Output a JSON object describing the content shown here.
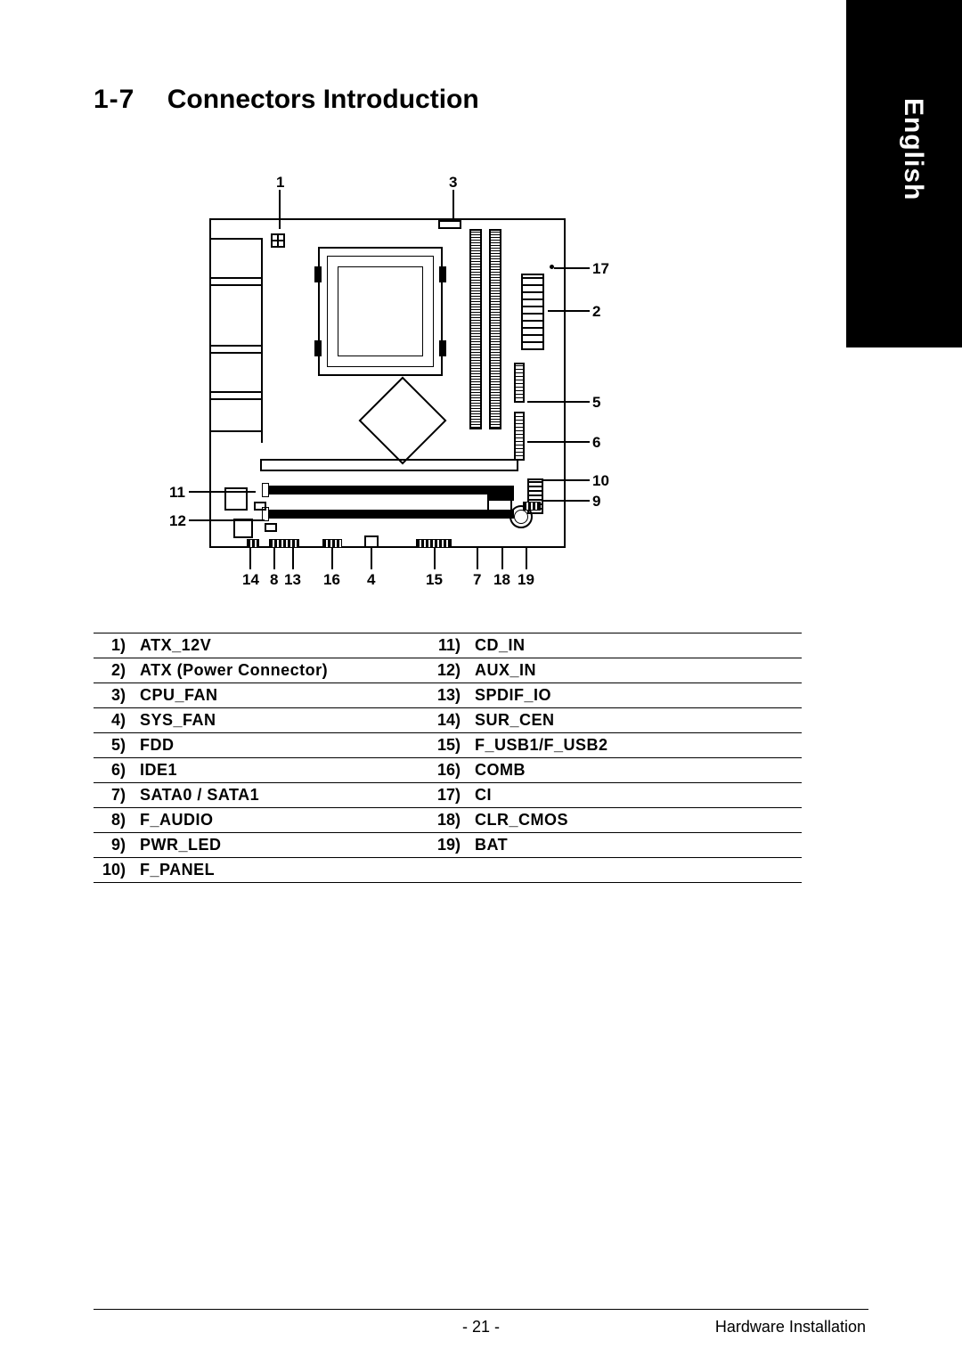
{
  "sideTab": "English",
  "heading": {
    "num": "1-7",
    "title": "Connectors Introduction"
  },
  "callouts": {
    "c1": "1",
    "c3": "3",
    "c17": "17",
    "c2": "2",
    "c5": "5",
    "c6": "6",
    "c10": "10",
    "c9": "9",
    "c11": "11",
    "c12": "12",
    "c14": "14",
    "c8": "8",
    "c13": "13",
    "c16": "16",
    "c4": "4",
    "c15": "15",
    "c7": "7",
    "c18": "18",
    "c19": "19"
  },
  "connectors": {
    "left": [
      {
        "n": "1)",
        "name": "ATX_12V"
      },
      {
        "n": "2)",
        "name": "ATX (Power Connector)"
      },
      {
        "n": "3)",
        "name": "CPU_FAN"
      },
      {
        "n": "4)",
        "name": "SYS_FAN"
      },
      {
        "n": "5)",
        "name": "FDD"
      },
      {
        "n": "6)",
        "name": "IDE1"
      },
      {
        "n": "7)",
        "name": "SATA0 / SATA1"
      },
      {
        "n": "8)",
        "name": "F_AUDIO"
      },
      {
        "n": "9)",
        "name": "PWR_LED"
      },
      {
        "n": "10)",
        "name": "F_PANEL"
      }
    ],
    "right": [
      {
        "n": "11)",
        "name": "CD_IN"
      },
      {
        "n": "12)",
        "name": "AUX_IN"
      },
      {
        "n": "13)",
        "name": "SPDIF_IO"
      },
      {
        "n": "14)",
        "name": "SUR_CEN"
      },
      {
        "n": "15)",
        "name": "F_USB1/F_USB2"
      },
      {
        "n": "16)",
        "name": "COMB"
      },
      {
        "n": "17)",
        "name": "CI"
      },
      {
        "n": "18)",
        "name": "CLR_CMOS"
      },
      {
        "n": "19)",
        "name": "BAT"
      }
    ]
  },
  "footer": {
    "page": "- 21 -",
    "section": "Hardware Installation"
  },
  "style": {
    "page_bg": "#ffffff",
    "text_color": "#000000",
    "tab_bg": "#000000",
    "tab_text": "#ffffff",
    "border_color": "#000000",
    "heading_fontsize": 30,
    "table_fontsize": 18,
    "callout_fontsize": 17,
    "footer_fontsize": 18
  }
}
